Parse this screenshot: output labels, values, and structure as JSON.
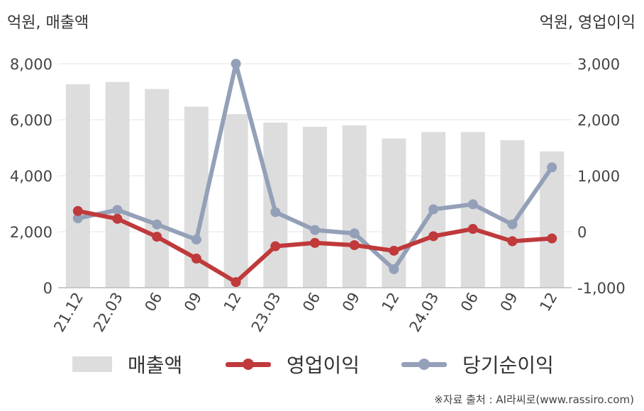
{
  "axis_units": {
    "left": "억원, 매출액",
    "right": "억원, 영업이익"
  },
  "source": "※자료 출처 : AI라씨로(www.rassiro.com)",
  "legend": [
    {
      "key": "sales",
      "label": "매출액"
    },
    {
      "key": "op",
      "label": "영업이익"
    },
    {
      "key": "net",
      "label": "당기순이익"
    }
  ],
  "colors": {
    "sales": "#dddddd",
    "op": "#c0393b",
    "net": "#94a0b8",
    "grid": "#e6e6e6",
    "axis": "#bbbbbb"
  },
  "chart_data": {
    "type": "bar",
    "categories": [
      "21.12",
      "22.03",
      "06",
      "09",
      "12",
      "23.03",
      "06",
      "09",
      "12",
      "24.03",
      "06",
      "09",
      "12"
    ],
    "y_left": {
      "label": "억원, 매출액",
      "min": 0,
      "max": 8000,
      "ticks": [
        0,
        2000,
        4000,
        6000,
        8000
      ],
      "tick_labels": [
        "0",
        "2,000",
        "4,000",
        "6,000",
        "8,000"
      ]
    },
    "y_right": {
      "label": "억원, 영업이익",
      "min": -1000,
      "max": 3000,
      "ticks": [
        -1000,
        0,
        1000,
        2000,
        3000
      ],
      "tick_labels": [
        "-1,000",
        "0",
        "1,000",
        "2,000",
        "3,000"
      ]
    },
    "grid": true,
    "legend_position": "bottom",
    "series": [
      {
        "name": "매출액",
        "type": "bar",
        "axis": "left",
        "values": [
          7270,
          7350,
          7100,
          6470,
          6200,
          5900,
          5750,
          5800,
          5330,
          5560,
          5560,
          5270,
          4870
        ]
      },
      {
        "name": "영업이익",
        "type": "line",
        "axis": "right",
        "values": [
          370,
          230,
          -90,
          -480,
          -900,
          -260,
          -200,
          -240,
          -340,
          -80,
          50,
          -170,
          -120
        ]
      },
      {
        "name": "당기순이익",
        "type": "line",
        "axis": "right",
        "values": [
          240,
          390,
          130,
          -140,
          3000,
          350,
          30,
          -30,
          -670,
          400,
          490,
          130,
          1150
        ]
      }
    ]
  }
}
